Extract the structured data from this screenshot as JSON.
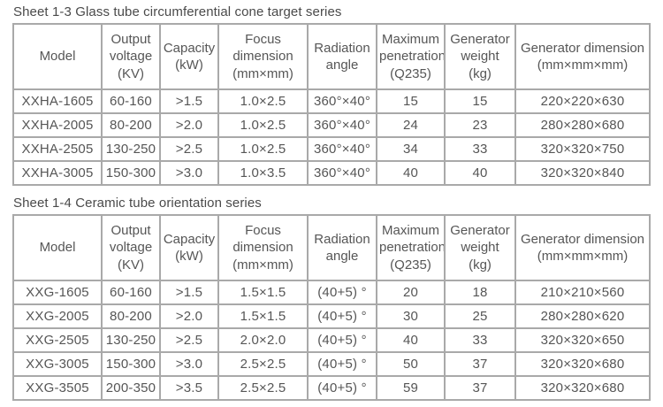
{
  "page": {
    "background_color": "#ffffff",
    "text_color": "#4f4f4f",
    "border_color": "#a9a9a9"
  },
  "tables": [
    {
      "title": "Sheet 1-3 Glass tube circumferential cone target series",
      "headers": [
        "Model",
        "Output\nvoltage\n(KV)",
        "Capacity\n(kW)",
        "Focus\ndimension\n(mm×mm)",
        "Radiation\nangle",
        "Maximum\npenetration\n(Q235)",
        "Generator\nweight\n(kg)",
        "Generator dimension\n(mm×mm×mm)"
      ],
      "rows": [
        [
          "XXHA-1605",
          "60-160",
          ">1.5",
          "1.0×2.5",
          "360°×40°",
          "15",
          "15",
          "220×220×630"
        ],
        [
          "XXHA-2005",
          "80-200",
          ">2.0",
          "1.0×2.5",
          "360°×40°",
          "24",
          "23",
          "280×280×680"
        ],
        [
          "XXHA-2505",
          "130-250",
          ">2.5",
          "1.0×2.5",
          "360°×40°",
          "34",
          "33",
          "320×320×750"
        ],
        [
          "XXHA-3005",
          "150-300",
          ">3.0",
          "1.0×3.5",
          "360°×40°",
          "40",
          "40",
          "320×320×840"
        ]
      ]
    },
    {
      "title": "Sheet 1-4 Ceramic tube orientation series",
      "headers": [
        "Model",
        "Output\nvoltage\n(KV)",
        "Capacity\n(kW)",
        "Focus\ndimension\n(mm×mm)",
        "Radiation\nangle",
        "Maximum\npenetration\n(Q235)",
        "Generator\nweight\n(kg)",
        "Generator dimension\n(mm×mm×mm)"
      ],
      "rows": [
        [
          "XXG-1605",
          "60-160",
          ">1.5",
          "1.5×1.5",
          "(40+5) °",
          "20",
          "18",
          "210×210×560"
        ],
        [
          "XXG-2005",
          "80-200",
          ">2.0",
          "1.5×1.5",
          "(40+5) °",
          "30",
          "25",
          "280×280×620"
        ],
        [
          "XXG-2505",
          "130-250",
          ">2.5",
          "2.0×2.0",
          "(40+5) °",
          "40",
          "33",
          "320×320×650"
        ],
        [
          "XXG-3005",
          "150-300",
          ">3.0",
          "2.5×2.5",
          "(40+5) °",
          "50",
          "37",
          "320×320×680"
        ],
        [
          "XXG-3505",
          "200-350",
          ">3.5",
          "2.5×2.5",
          "(40+5) °",
          "59",
          "37",
          "320×320×680"
        ]
      ]
    }
  ]
}
